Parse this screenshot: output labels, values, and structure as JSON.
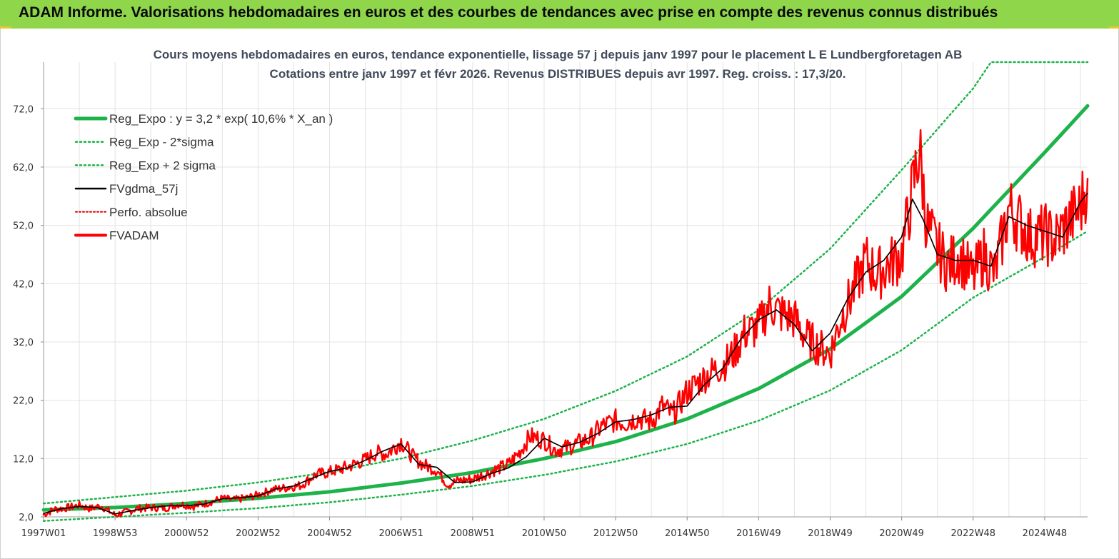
{
  "banner": {
    "title": "ADAM Informe. Valorisations hebdomadaires en euros et des courbes de tendances avec prise en compte des revenus connus distribués",
    "background": "#8fd64a"
  },
  "colors": {
    "reg": "#1db34a",
    "sigma": "#1db34a",
    "fv57": "#000000",
    "perfo": "#e00000",
    "fvadam": "#ff0000",
    "grid": "#e3e3e3"
  },
  "chart_data": {
    "type": "line",
    "title": "Cours moyens hebdomadaires en euros, tendance exponentielle, lissage 57 j depuis janv 1997 pour le placement L E Lundbergforetagen AB",
    "subtitle": "Cotations entre janv 1997 et févr 2026. Revenus DISTRIBUES depuis avr 1997. Reg. croiss. : 17,3/20.",
    "xlabel": "",
    "ylabel": "",
    "ylim": [
      2.0,
      80.0
    ],
    "xlim": [
      1997.0,
      2026.2
    ],
    "x_tick_labels": [
      "1997W01",
      "1998W53",
      "2000W52",
      "2002W52",
      "2004W52",
      "2006W51",
      "2008W51",
      "2010W50",
      "2012W50",
      "2014W50",
      "2016W49",
      "2018W49",
      "2020W49",
      "2022W48",
      "2024W48"
    ],
    "x_tick_years": [
      1997.0,
      1999.0,
      2001.0,
      2003.0,
      2005.0,
      2007.0,
      2009.0,
      2011.0,
      2013.0,
      2015.0,
      2017.0,
      2019.0,
      2021.0,
      2023.0,
      2025.0
    ],
    "y_ticks": [
      "2,0",
      "12,0",
      "22,0",
      "32,0",
      "42,0",
      "52,0",
      "62,0",
      "72,0"
    ],
    "y_tick_values": [
      2,
      12,
      22,
      32,
      42,
      52,
      62,
      72
    ],
    "grid": true,
    "legend_position": "top-left",
    "legend": [
      {
        "key": "reg",
        "label": "Reg_Expo : y = 3,2 * exp( 10,6% *  X_an )"
      },
      {
        "key": "lower",
        "label": "Reg_Exp - 2*sigma"
      },
      {
        "key": "upper",
        "label": "Reg_Exp + 2 sigma"
      },
      {
        "key": "fv57",
        "label": "FVgdma_57j"
      },
      {
        "key": "perfo",
        "label": "Perfo. absolue"
      },
      {
        "key": "fvadam",
        "label": "FVADAM"
      }
    ],
    "series": [
      {
        "name": "Reg_Expo",
        "key": "reg",
        "x": [
          1997.0,
          1999.0,
          2001.0,
          2003.0,
          2005.0,
          2007.0,
          2009.0,
          2011.0,
          2013.0,
          2015.0,
          2017.0,
          2019.0,
          2021.0,
          2023.0,
          2025.0,
          2026.2
        ],
        "y": [
          3.2,
          3.6,
          4.3,
          5.2,
          6.3,
          7.8,
          9.6,
          12.0,
          14.9,
          18.8,
          24.0,
          30.8,
          39.8,
          51.5,
          64.5,
          72.5
        ]
      },
      {
        "name": "Reg_Exp - 2*sigma",
        "key": "lower",
        "x": [
          1997.0,
          1999.0,
          2001.0,
          2003.0,
          2005.0,
          2007.0,
          2009.0,
          2011.0,
          2013.0,
          2015.0,
          2017.0,
          2019.0,
          2021.0,
          2023.0,
          2025.0,
          2026.2
        ],
        "y": [
          1.3,
          2.0,
          2.7,
          3.5,
          4.5,
          5.8,
          7.3,
          9.2,
          11.5,
          14.5,
          18.5,
          23.7,
          30.6,
          39.6,
          46.6,
          51.0
        ]
      },
      {
        "name": "Reg_Exp + 2 sigma",
        "key": "upper",
        "x": [
          1997.0,
          1999.0,
          2001.0,
          2003.0,
          2005.0,
          2007.0,
          2009.0,
          2011.0,
          2013.0,
          2015.0,
          2017.0,
          2019.0,
          2021.0,
          2023.0,
          2023.5,
          2026.2
        ],
        "y": [
          4.3,
          5.4,
          6.5,
          7.9,
          9.7,
          12.0,
          15.1,
          18.8,
          23.6,
          29.5,
          37.5,
          48.0,
          61.5,
          75.5,
          80.0,
          80.0
        ]
      },
      {
        "name": "FVgdma_57j",
        "key": "fv57",
        "x": [
          1997.0,
          1997.5,
          1998.0,
          1998.5,
          1999.0,
          1999.5,
          2000.0,
          2000.5,
          2001.0,
          2001.5,
          2002.0,
          2002.5,
          2003.0,
          2003.5,
          2004.0,
          2004.5,
          2005.0,
          2005.5,
          2006.0,
          2006.5,
          2007.0,
          2007.5,
          2008.0,
          2008.5,
          2009.0,
          2009.5,
          2010.0,
          2010.5,
          2011.0,
          2011.5,
          2012.0,
          2012.5,
          2013.0,
          2013.5,
          2014.0,
          2014.5,
          2015.0,
          2015.5,
          2016.0,
          2016.5,
          2017.0,
          2017.5,
          2018.0,
          2018.5,
          2019.0,
          2019.5,
          2020.0,
          2020.5,
          2021.0,
          2021.3,
          2021.6,
          2022.0,
          2022.5,
          2023.0,
          2023.5,
          2024.0,
          2024.5,
          2025.0,
          2025.5,
          2026.0,
          2026.2
        ],
        "y": [
          2.6,
          3.4,
          3.8,
          3.6,
          2.5,
          3.1,
          3.6,
          3.9,
          3.9,
          4.2,
          5.1,
          5.3,
          5.6,
          6.8,
          7.3,
          8.6,
          9.8,
          10.4,
          11.7,
          13.3,
          14.5,
          11.0,
          10.5,
          7.9,
          8.0,
          9.4,
          10.4,
          12.3,
          15.5,
          14.0,
          14.8,
          16.3,
          18.3,
          18.7,
          19.5,
          20.8,
          21.0,
          24.8,
          27.5,
          32.5,
          35.8,
          37.5,
          35.0,
          30.5,
          33.5,
          39.5,
          44.0,
          46.0,
          50.0,
          56.5,
          53.0,
          47.0,
          46.0,
          46.0,
          45.0,
          53.5,
          52.0,
          51.0,
          50.0,
          56.0,
          57.5
        ]
      },
      {
        "name": "Perfo. absolue",
        "key": "perfo",
        "x": [
          1997.0,
          1997.5,
          1998.0,
          1998.5,
          1999.0,
          1999.5,
          2000.0,
          2000.5,
          2001.0,
          2001.5,
          2002.0,
          2002.5,
          2003.0,
          2003.5,
          2004.0,
          2004.5,
          2005.0,
          2005.5,
          2006.0,
          2006.5,
          2007.0,
          2007.5,
          2008.0,
          2008.5,
          2009.0,
          2009.5,
          2010.0,
          2010.5,
          2011.0,
          2011.5,
          2012.0,
          2012.5,
          2013.0,
          2013.5,
          2014.0,
          2014.5,
          2015.0,
          2015.5,
          2016.0,
          2016.5,
          2017.0,
          2017.5,
          2018.0,
          2018.5,
          2019.0,
          2019.5,
          2020.0,
          2020.5,
          2021.0,
          2021.3,
          2021.6,
          2022.0,
          2022.5,
          2023.0,
          2023.5,
          2024.0,
          2024.5,
          2025.0,
          2025.5,
          2026.0,
          2026.2
        ],
        "y": [
          2.6,
          3.4,
          3.8,
          3.6,
          2.5,
          3.1,
          3.6,
          3.9,
          3.9,
          4.2,
          5.1,
          5.3,
          5.6,
          6.8,
          7.3,
          8.6,
          9.8,
          10.4,
          11.7,
          13.3,
          14.5,
          11.0,
          10.5,
          7.9,
          8.0,
          9.4,
          10.4,
          12.3,
          15.5,
          14.0,
          14.8,
          16.3,
          18.3,
          18.7,
          19.5,
          20.8,
          21.0,
          24.8,
          27.5,
          32.5,
          35.8,
          37.5,
          35.0,
          30.5,
          33.5,
          39.5,
          44.0,
          46.0,
          50.0,
          56.5,
          53.0,
          47.0,
          46.0,
          46.0,
          45.0,
          53.5,
          52.0,
          51.0,
          50.0,
          56.0,
          57.5
        ]
      },
      {
        "name": "FVADAM",
        "key": "fvadam",
        "x": [
          1997.0,
          1997.3,
          1997.6,
          1998.0,
          1998.3,
          1998.6,
          1999.0,
          1999.3,
          1999.6,
          2000.0,
          2000.4,
          2000.8,
          2001.2,
          2001.6,
          2002.0,
          2002.3,
          2002.7,
          2003.0,
          2003.4,
          2003.8,
          2004.2,
          2004.6,
          2005.0,
          2005.3,
          2005.6,
          2006.0,
          2006.3,
          2006.6,
          2007.0,
          2007.3,
          2007.6,
          2008.0,
          2008.3,
          2008.6,
          2009.0,
          2009.3,
          2009.6,
          2010.0,
          2010.3,
          2010.6,
          2011.0,
          2011.3,
          2011.6,
          2012.0,
          2012.3,
          2012.6,
          2013.0,
          2013.3,
          2013.6,
          2014.0,
          2014.3,
          2014.6,
          2015.0,
          2015.3,
          2015.6,
          2016.0,
          2016.3,
          2016.6,
          2017.0,
          2017.3,
          2017.6,
          2018.0,
          2018.3,
          2018.6,
          2019.0,
          2019.3,
          2019.6,
          2020.0,
          2020.3,
          2020.6,
          2021.0,
          2021.3,
          2021.5,
          2021.7,
          2022.0,
          2022.3,
          2022.6,
          2023.0,
          2023.3,
          2023.6,
          2024.0,
          2024.3,
          2024.6,
          2025.0,
          2025.3,
          2025.6,
          2026.0,
          2026.2
        ],
        "y": [
          2.4,
          3.3,
          3.5,
          4.0,
          3.4,
          3.9,
          2.3,
          2.8,
          3.4,
          3.6,
          3.5,
          4.2,
          3.8,
          4.4,
          5.2,
          4.9,
          5.3,
          5.8,
          6.7,
          7.0,
          7.4,
          9.2,
          9.7,
          10.2,
          10.8,
          11.8,
          13.0,
          12.8,
          15.0,
          12.5,
          11.0,
          10.0,
          7.5,
          8.2,
          8.5,
          9.2,
          10.0,
          11.0,
          13.0,
          15.8,
          15.2,
          13.5,
          13.8,
          14.8,
          15.5,
          17.5,
          18.5,
          18.2,
          19.0,
          18.3,
          21.0,
          19.5,
          23.5,
          25.0,
          26.5,
          28.0,
          30.0,
          33.5,
          34.5,
          38.5,
          37.0,
          36.0,
          33.0,
          31.5,
          30.0,
          36.0,
          40.0,
          46.0,
          43.5,
          45.0,
          47.0,
          58.0,
          65.0,
          52.0,
          48.0,
          45.0,
          47.0,
          43.0,
          47.0,
          43.5,
          55.0,
          52.5,
          50.0,
          50.5,
          49.5,
          52.0,
          55.0,
          60.0
        ]
      }
    ]
  }
}
